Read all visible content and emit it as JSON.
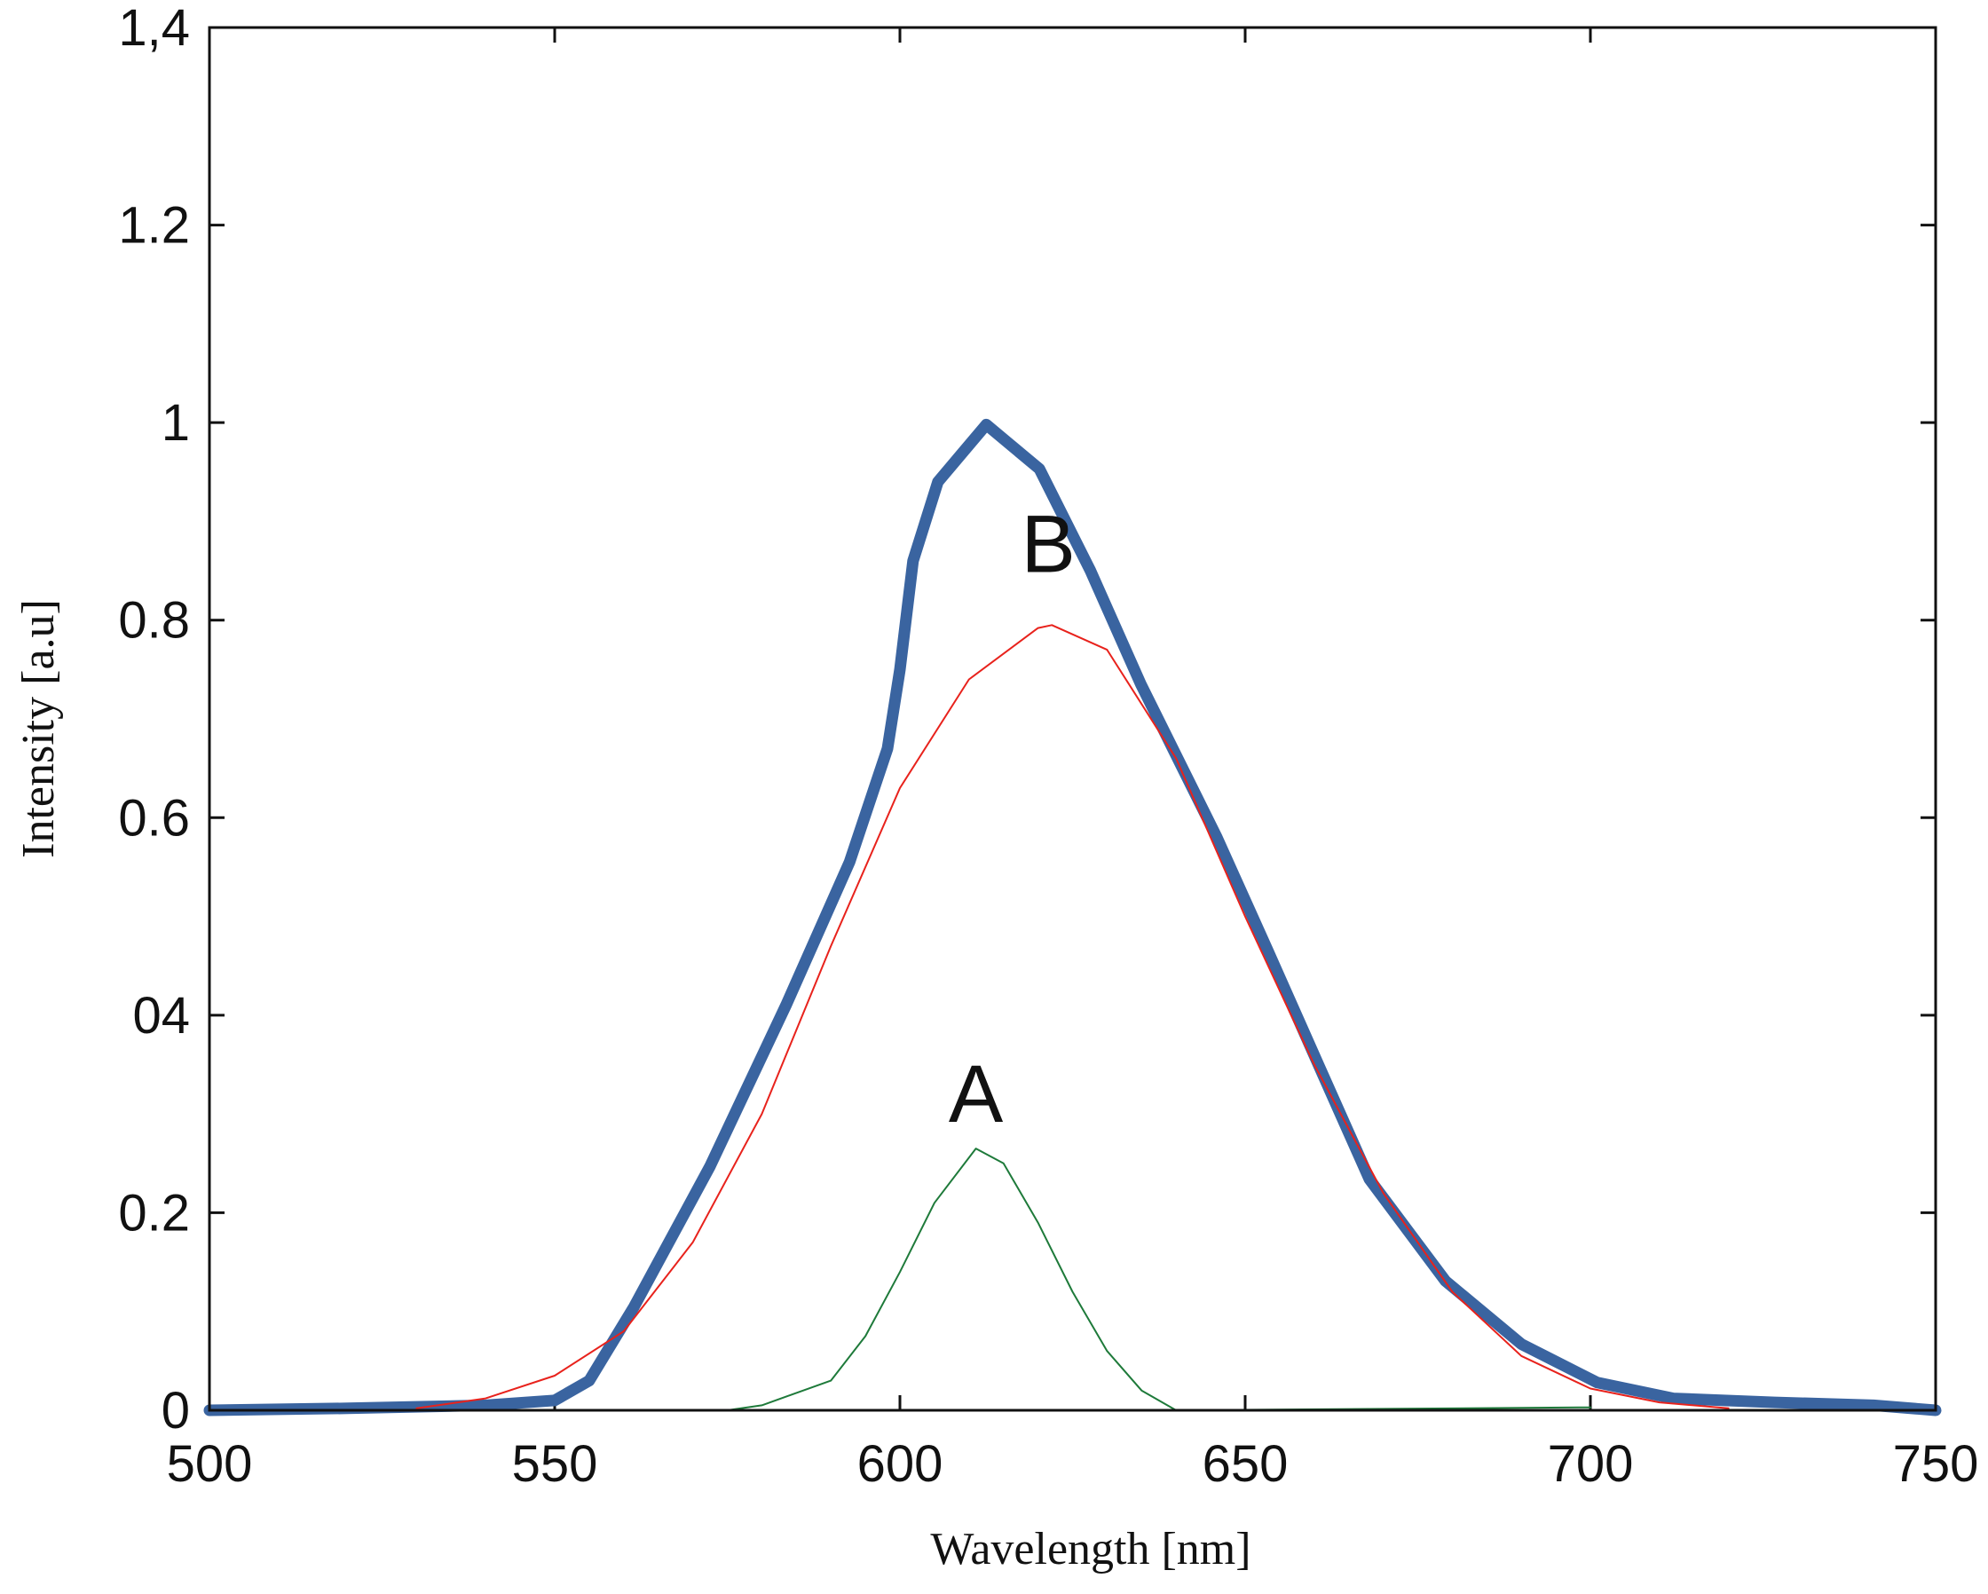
{
  "chart_data": {
    "type": "line",
    "xlabel": "Wavelength [nm]",
    "ylabel": "Intensity [a.u]",
    "xlim": [
      500,
      750
    ],
    "xticks": [
      500,
      550,
      600,
      650,
      700,
      750
    ],
    "ylim": [
      0,
      1.4
    ],
    "yticks": [
      0,
      0.2,
      {
        "value": 0.4,
        "label": "04"
      },
      0.6,
      0.8,
      1,
      1.2,
      {
        "value": 1.4,
        "label": "1,4"
      }
    ],
    "grid": false,
    "series": [
      {
        "color": "#3a64a0",
        "x": [
          500,
          520,
          540,
          550,
          555,
          561.5,
          572.5,
          583.5,
          592.7,
          598.2,
          600,
          601.9,
          605.5,
          612.5,
          620.2,
          627.6,
          634.9,
          645.9,
          653.3,
          660.6,
          668,
          679,
          690,
          701,
          712,
          726.7,
          741,
          750
        ],
        "values": [
          0,
          0.002,
          0.005,
          0.01,
          0.03,
          0.105,
          0.247,
          0.41,
          0.555,
          0.67,
          0.75,
          0.86,
          0.94,
          0.998,
          0.953,
          0.85,
          0.735,
          0.58,
          0.465,
          0.35,
          0.234,
          0.131,
          0.067,
          0.028,
          0.012,
          0.008,
          0.005,
          0
        ]
      },
      {
        "name": "B",
        "color": "#e8221c",
        "x": [
          530,
          540,
          550,
          560,
          570,
          580,
          590,
          600,
          610,
          620,
          622,
          630,
          640,
          650,
          660,
          670,
          680,
          690,
          700,
          710,
          720
        ],
        "values": [
          0.002,
          0.012,
          0.035,
          0.08,
          0.17,
          0.3,
          0.47,
          0.63,
          0.74,
          0.792,
          0.795,
          0.77,
          0.66,
          0.5,
          0.35,
          0.22,
          0.12,
          0.055,
          0.022,
          0.008,
          0.002
        ]
      },
      {
        "name": "A",
        "color": "#1e7a3a",
        "x": [
          550,
          575,
          580,
          590,
          595,
          600,
          605,
          611,
          615,
          620,
          625,
          630,
          635,
          640,
          700
        ],
        "values": [
          0,
          0,
          0.005,
          0.03,
          0.075,
          0.14,
          0.21,
          0.265,
          0.25,
          0.19,
          0.12,
          0.06,
          0.02,
          0,
          0.003
        ]
      }
    ]
  }
}
